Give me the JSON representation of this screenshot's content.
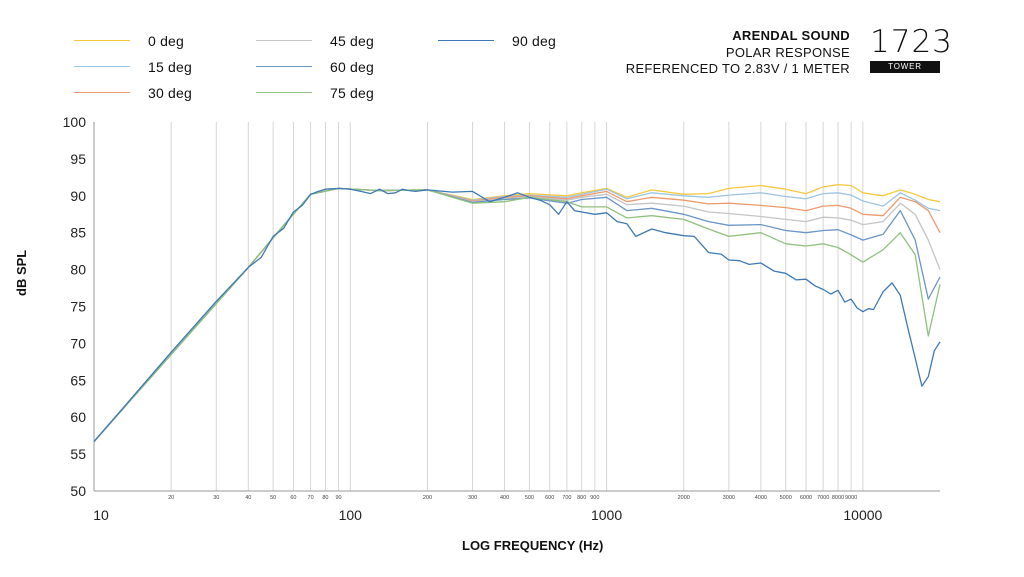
{
  "header": {
    "brand": "ARENDAL SOUND",
    "line1": "POLAR RESPONSE",
    "line2": "REFERENCED TO 2.83V / 1 METER",
    "model": "1723",
    "model_tag": "TOWER"
  },
  "chart_data": {
    "type": "line",
    "xlabel": "LOG FREQUENCY (Hz)",
    "ylabel": "dB SPL",
    "xscale": "log",
    "xlim": [
      10,
      20000
    ],
    "ylim": [
      50,
      100
    ],
    "grid": true,
    "legend": "top-left",
    "y_ticks": [
      50,
      55,
      60,
      65,
      70,
      75,
      80,
      85,
      90,
      95,
      100
    ],
    "x_major_ticks": [
      10,
      100,
      1000,
      10000
    ],
    "x_major_labels": [
      "10",
      "100",
      "1000",
      "10000"
    ],
    "x_minor_ticks": [
      20,
      30,
      40,
      50,
      60,
      70,
      80,
      90,
      200,
      300,
      400,
      500,
      600,
      700,
      800,
      900,
      2000,
      3000,
      4000,
      5000,
      6000,
      7000,
      8000,
      9000
    ],
    "x_minor_labels": [
      "20",
      "30",
      "40",
      "50",
      "60",
      "70",
      "80",
      "90",
      "200",
      "300",
      "400",
      "500",
      "600",
      "700",
      "800",
      "900",
      "2000",
      "3000",
      "4000",
      "5000",
      "6000",
      "7000",
      "8000",
      "9000"
    ],
    "series": [
      {
        "name": "0 deg",
        "color": "#f5c842",
        "x": [
          10,
          20,
          40,
          55,
          70,
          90,
          130,
          200,
          300,
          400,
          500,
          700,
          800,
          1000,
          1200,
          1500,
          2000,
          2500,
          3000,
          4000,
          5000,
          6000,
          7000,
          8000,
          9000,
          10000,
          12000,
          14000,
          16000,
          18000,
          20000
        ],
        "y": [
          56.7,
          68.5,
          80.3,
          86,
          90.2,
          91,
          90.7,
          90.8,
          89.5,
          90,
          90.3,
          90,
          90.4,
          91,
          89.8,
          90.8,
          90.2,
          90.3,
          91,
          91.4,
          90.9,
          90.3,
          91.2,
          91.5,
          91.4,
          90.4,
          90,
          90.8,
          90.2,
          89.5,
          89.2
        ]
      },
      {
        "name": "15 deg",
        "color": "#9cc6e2",
        "x": [
          10,
          20,
          40,
          55,
          70,
          90,
          130,
          200,
          300,
          400,
          500,
          700,
          800,
          1000,
          1200,
          1500,
          2000,
          2500,
          3000,
          4000,
          5000,
          6000,
          7000,
          8000,
          9000,
          10000,
          12000,
          14000,
          16000,
          18000,
          20000
        ],
        "y": [
          56.7,
          68.5,
          80.3,
          86,
          90.2,
          91,
          90.7,
          90.8,
          89.4,
          89.9,
          90.1,
          89.8,
          90.2,
          90.9,
          89.6,
          90.4,
          90,
          89.8,
          90.1,
          90.4,
          89.9,
          89.6,
          90.3,
          90.4,
          90.1,
          89.3,
          88.6,
          90.4,
          89.4,
          88.3,
          88
        ]
      },
      {
        "name": "30 deg",
        "color": "#ed9a6e",
        "x": [
          10,
          20,
          40,
          55,
          70,
          90,
          130,
          200,
          300,
          400,
          500,
          700,
          800,
          1000,
          1200,
          1500,
          2000,
          2500,
          3000,
          4000,
          5000,
          6000,
          7000,
          8000,
          9000,
          10000,
          12000,
          14000,
          16000,
          18000,
          20000
        ],
        "y": [
          56.7,
          68.5,
          80.3,
          86,
          90.2,
          91,
          90.7,
          90.8,
          89.3,
          89.8,
          90,
          89.6,
          90,
          90.6,
          89.2,
          89.8,
          89.4,
          88.9,
          89,
          88.7,
          88.4,
          88,
          88.6,
          88.7,
          88.3,
          87.5,
          87.3,
          89.8,
          89.2,
          88,
          85
        ]
      },
      {
        "name": "45 deg",
        "color": "#c4c4c4",
        "x": [
          10,
          20,
          40,
          55,
          70,
          90,
          130,
          200,
          300,
          400,
          500,
          700,
          800,
          1000,
          1200,
          1500,
          2000,
          2500,
          3000,
          4000,
          5000,
          6000,
          7000,
          8000,
          9000,
          10000,
          12000,
          14000,
          16000,
          18000,
          20000
        ],
        "y": [
          56.7,
          68.5,
          80.3,
          86,
          90.2,
          91,
          90.7,
          90.8,
          89.2,
          89.6,
          89.9,
          89.4,
          89.8,
          90.2,
          88.8,
          89,
          88.6,
          87.8,
          87.6,
          87.2,
          86.8,
          86.5,
          87.1,
          87,
          86.7,
          86.1,
          86.5,
          89,
          87.5,
          84,
          80
        ]
      },
      {
        "name": "60 deg",
        "color": "#6b96c6",
        "x": [
          10,
          20,
          40,
          55,
          70,
          90,
          130,
          200,
          300,
          400,
          500,
          700,
          800,
          1000,
          1200,
          1500,
          2000,
          2500,
          3000,
          4000,
          5000,
          6000,
          7000,
          8000,
          9000,
          10000,
          12000,
          14000,
          16000,
          18000,
          20000
        ],
        "y": [
          56.7,
          68.5,
          80.3,
          86,
          90.2,
          91,
          90.7,
          90.8,
          89.1,
          89.5,
          89.7,
          89,
          89.5,
          89.8,
          88,
          88.3,
          87.5,
          86.5,
          86,
          86.1,
          85.3,
          85,
          85.3,
          85.4,
          84.7,
          84,
          84.8,
          88,
          84,
          76,
          79
        ]
      },
      {
        "name": "75 deg",
        "color": "#8fc17e",
        "x": [
          10,
          20,
          40,
          55,
          70,
          90,
          130,
          200,
          300,
          400,
          500,
          700,
          800,
          1000,
          1200,
          1500,
          2000,
          2500,
          3000,
          4000,
          5000,
          6000,
          7000,
          8000,
          9000,
          10000,
          12000,
          14000,
          16000,
          18000,
          20000
        ],
        "y": [
          56.7,
          68.5,
          80.3,
          86,
          90.2,
          91,
          90.7,
          90.8,
          89,
          89.2,
          89.8,
          89.2,
          88.5,
          88.5,
          87,
          87.3,
          86.8,
          85.5,
          84.5,
          85,
          83.5,
          83.2,
          83.5,
          83,
          82,
          81,
          82.7,
          85,
          82,
          71,
          78
        ]
      },
      {
        "name": "90 deg",
        "color": "#3f79b5",
        "x": [
          10,
          20,
          30,
          40,
          45,
          50,
          55,
          60,
          65,
          70,
          75,
          80,
          90,
          100,
          110,
          120,
          130,
          140,
          150,
          160,
          170,
          180,
          200,
          250,
          300,
          350,
          400,
          450,
          500,
          550,
          600,
          650,
          700,
          750,
          800,
          900,
          1000,
          1100,
          1200,
          1300,
          1500,
          1700,
          2000,
          2200,
          2500,
          2800,
          3000,
          3300,
          3600,
          4000,
          4500,
          5000,
          5500,
          6000,
          6500,
          7000,
          7500,
          8000,
          8500,
          9000,
          9500,
          10000,
          10500,
          11000,
          12000,
          13000,
          14000,
          15000,
          16000,
          17000,
          18000,
          19000,
          20000
        ],
        "y": [
          56.7,
          68.8,
          75.7,
          80.3,
          81.7,
          84.5,
          85.6,
          87.8,
          88.7,
          90.2,
          90.6,
          90.9,
          91,
          90.9,
          90.6,
          90.3,
          90.9,
          90.3,
          90.4,
          90.9,
          90.7,
          90.6,
          90.8,
          90.5,
          90.6,
          89.2,
          89.8,
          90.4,
          89.8,
          89.4,
          88.8,
          87.5,
          89.2,
          88,
          87.8,
          87.5,
          87.7,
          86.5,
          86.2,
          84.5,
          85.5,
          85,
          84.6,
          84.5,
          82.3,
          82.1,
          81.3,
          81.2,
          80.7,
          80.9,
          79.8,
          79.5,
          78.6,
          78.7,
          77.8,
          77.3,
          76.7,
          77.2,
          75.6,
          76,
          74.8,
          74.3,
          74.7,
          74.6,
          77,
          78.2,
          76.5,
          72,
          68,
          64.2,
          65.5,
          69,
          70.2
        ]
      }
    ]
  }
}
